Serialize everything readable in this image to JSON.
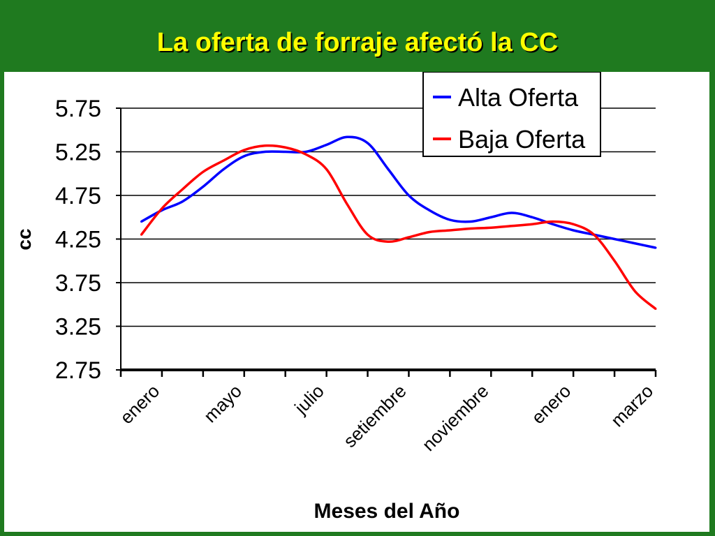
{
  "slide": {
    "title": "La oferta de forraje afectó la CC",
    "colors": {
      "background": "#1f7a1f",
      "title": "#ffff00",
      "alta": "#0000ff",
      "baja": "#ff0000"
    }
  },
  "chart_data": {
    "type": "line",
    "xlabel": "Meses del Año",
    "ylabel": "cc",
    "ylim": [
      2.75,
      5.75
    ],
    "yticks": [
      "5.75",
      "5.25",
      "4.75",
      "4.25",
      "3.75",
      "3.25",
      "2.75"
    ],
    "xtick_labels": [
      "enero",
      "mayo",
      "julio",
      "setiembre",
      "noviembre",
      "enero",
      "marzo"
    ],
    "grid": true,
    "legend_position": "top-right",
    "series": [
      {
        "name": "Alta Oferta",
        "color": "#0000ff",
        "x": [
          0.5,
          1,
          1.5,
          2,
          2.5,
          3,
          3.5,
          4,
          4.5,
          5,
          5.5,
          6,
          6.5,
          7,
          7.5,
          8,
          8.5,
          9,
          9.5,
          10,
          10.5,
          11,
          11.5,
          12,
          12.5,
          13
        ],
        "values": [
          4.45,
          4.58,
          4.68,
          4.85,
          5.05,
          5.2,
          5.25,
          5.25,
          5.25,
          5.33,
          5.42,
          5.35,
          5.05,
          4.75,
          4.58,
          4.47,
          4.45,
          4.5,
          4.55,
          4.5,
          4.42,
          4.35,
          4.3,
          4.25,
          4.2,
          4.15
        ]
      },
      {
        "name": "Baja Oferta",
        "color": "#ff0000",
        "x": [
          0.5,
          1,
          1.5,
          2,
          2.5,
          3,
          3.5,
          4,
          4.5,
          5,
          5.5,
          6,
          6.5,
          7,
          7.5,
          8,
          8.5,
          9,
          9.5,
          10,
          10.5,
          11,
          11.5,
          12,
          12.5,
          13
        ],
        "values": [
          4.3,
          4.6,
          4.82,
          5.02,
          5.15,
          5.27,
          5.32,
          5.3,
          5.22,
          5.05,
          4.65,
          4.3,
          4.22,
          4.27,
          4.33,
          4.35,
          4.37,
          4.38,
          4.4,
          4.42,
          4.45,
          4.42,
          4.3,
          4.0,
          3.65,
          3.45
        ]
      }
    ]
  }
}
